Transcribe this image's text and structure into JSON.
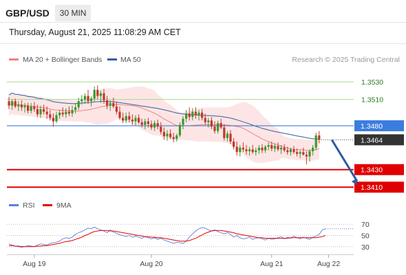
{
  "header": {
    "symbol": "GBP/USD",
    "timeframe": "30 MIN",
    "timestamp": "Thursday, August 21, 2025 11:08:29 AM CET"
  },
  "legend": {
    "items": [
      {
        "label": "MA 20 + Bollinger Bands",
        "color": "#f08080"
      },
      {
        "label": "MA 50",
        "color": "#2f5f9e"
      }
    ],
    "credit": "Research © 2025 Trading Central"
  },
  "colors": {
    "up": "#3a9a2f",
    "down": "#c0392b",
    "ma20": "#f08080",
    "bollinger_fill": "#fde2e2",
    "ma50": "#2f5f9e",
    "resistance": "#a8d88a",
    "pivot": "#3b7ddd",
    "support": "#e00000",
    "arrow": "#2e5aa0",
    "rsi": "#5b7fd6",
    "rsi_ma": "#e00000"
  },
  "chart_data": {
    "type": "candlestick",
    "price_range": [
      1.34,
      1.3545
    ],
    "x_tick_labels": [
      "Aug 19",
      "Aug 20",
      "Aug 21",
      "Aug 22"
    ],
    "x_tick_candle_index": [
      8,
      45,
      83,
      101
    ],
    "levels": [
      {
        "label": "1.3530",
        "value": 1.353,
        "kind": "resistance"
      },
      {
        "label": "1.3510",
        "value": 1.351,
        "kind": "resistance"
      },
      {
        "label": "1.3480",
        "value": 1.348,
        "kind": "pivot"
      },
      {
        "label": "1.3430",
        "value": 1.343,
        "kind": "support"
      },
      {
        "label": "1.3410",
        "value": 1.341,
        "kind": "support"
      }
    ],
    "current_price": {
      "label": "1.3464",
      "value": 1.3464
    },
    "forecast_arrow": {
      "from_index": 102,
      "from_value": 1.3464,
      "to_index": 110,
      "to_value": 1.3412
    },
    "candles": [
      [
        1.3508,
        1.3513,
        1.3499,
        1.3503
      ],
      [
        1.3503,
        1.351,
        1.3498,
        1.3508
      ],
      [
        1.3508,
        1.3511,
        1.35,
        1.3502
      ],
      [
        1.3502,
        1.3508,
        1.3497,
        1.3504
      ],
      [
        1.3504,
        1.3509,
        1.3497,
        1.3501
      ],
      [
        1.3501,
        1.3506,
        1.3495,
        1.3503
      ],
      [
        1.3503,
        1.3506,
        1.3494,
        1.3497
      ],
      [
        1.3497,
        1.3506,
        1.3494,
        1.3502
      ],
      [
        1.3502,
        1.3507,
        1.3496,
        1.3499
      ],
      [
        1.3499,
        1.3504,
        1.349,
        1.3493
      ],
      [
        1.3493,
        1.3503,
        1.3489,
        1.3499
      ],
      [
        1.3499,
        1.3504,
        1.3493,
        1.3496
      ],
      [
        1.3496,
        1.3502,
        1.3488,
        1.3493
      ],
      [
        1.3493,
        1.3498,
        1.3486,
        1.3489
      ],
      [
        1.3489,
        1.3494,
        1.3479,
        1.3485
      ],
      [
        1.3485,
        1.3496,
        1.3483,
        1.3492
      ],
      [
        1.3492,
        1.3498,
        1.3488,
        1.3495
      ],
      [
        1.3495,
        1.3501,
        1.349,
        1.3493
      ],
      [
        1.3493,
        1.35,
        1.3489,
        1.3496
      ],
      [
        1.3496,
        1.3502,
        1.3491,
        1.3494
      ],
      [
        1.3494,
        1.3503,
        1.349,
        1.3498
      ],
      [
        1.3498,
        1.3506,
        1.3494,
        1.3501
      ],
      [
        1.3501,
        1.3512,
        1.3498,
        1.3508
      ],
      [
        1.3508,
        1.3515,
        1.3504,
        1.351
      ],
      [
        1.351,
        1.3517,
        1.3505,
        1.3514
      ],
      [
        1.3514,
        1.3521,
        1.3505,
        1.3508
      ],
      [
        1.3508,
        1.3513,
        1.3502,
        1.3511
      ],
      [
        1.3511,
        1.3525,
        1.3508,
        1.3521
      ],
      [
        1.3521,
        1.3526,
        1.351,
        1.3514
      ],
      [
        1.3514,
        1.352,
        1.3506,
        1.3517
      ],
      [
        1.3517,
        1.3522,
        1.3505,
        1.3509
      ],
      [
        1.3509,
        1.3514,
        1.3499,
        1.3503
      ],
      [
        1.3503,
        1.3509,
        1.3497,
        1.3506
      ],
      [
        1.3506,
        1.3512,
        1.35,
        1.3502
      ],
      [
        1.3502,
        1.3507,
        1.3493,
        1.3496
      ],
      [
        1.3496,
        1.3502,
        1.3487,
        1.3489
      ],
      [
        1.3489,
        1.3495,
        1.3483,
        1.3486
      ],
      [
        1.3486,
        1.3495,
        1.3483,
        1.3491
      ],
      [
        1.3491,
        1.3496,
        1.3484,
        1.3487
      ],
      [
        1.3487,
        1.3493,
        1.3481,
        1.3485
      ],
      [
        1.3485,
        1.3492,
        1.348,
        1.3489
      ],
      [
        1.3489,
        1.3493,
        1.3482,
        1.3484
      ],
      [
        1.3484,
        1.3488,
        1.3478,
        1.3481
      ],
      [
        1.3481,
        1.3488,
        1.3476,
        1.3485
      ],
      [
        1.3485,
        1.3489,
        1.3478,
        1.3482
      ],
      [
        1.3482,
        1.3486,
        1.3475,
        1.3478
      ],
      [
        1.3478,
        1.3486,
        1.3474,
        1.3483
      ],
      [
        1.3483,
        1.3487,
        1.3476,
        1.3479
      ],
      [
        1.3479,
        1.3484,
        1.347,
        1.3473
      ],
      [
        1.3473,
        1.3478,
        1.3464,
        1.3468
      ],
      [
        1.3468,
        1.3475,
        1.3463,
        1.3471
      ],
      [
        1.3471,
        1.3476,
        1.3465,
        1.3467
      ],
      [
        1.3467,
        1.3472,
        1.3461,
        1.3465
      ],
      [
        1.3465,
        1.3471,
        1.3462,
        1.3469
      ],
      [
        1.3469,
        1.3484,
        1.3467,
        1.3481
      ],
      [
        1.3481,
        1.3491,
        1.3476,
        1.3488
      ],
      [
        1.3488,
        1.3498,
        1.3484,
        1.3494
      ],
      [
        1.3494,
        1.3501,
        1.3486,
        1.349
      ],
      [
        1.349,
        1.35,
        1.3486,
        1.3496
      ],
      [
        1.3496,
        1.3501,
        1.3488,
        1.3492
      ],
      [
        1.3492,
        1.3498,
        1.3486,
        1.3495
      ],
      [
        1.3495,
        1.3499,
        1.3486,
        1.3489
      ],
      [
        1.3489,
        1.3494,
        1.3481,
        1.3484
      ],
      [
        1.3484,
        1.3489,
        1.3478,
        1.3486
      ],
      [
        1.3486,
        1.349,
        1.3476,
        1.3479
      ],
      [
        1.3479,
        1.3485,
        1.3471,
        1.3474
      ],
      [
        1.3474,
        1.3486,
        1.3471,
        1.3483
      ],
      [
        1.3483,
        1.3488,
        1.3476,
        1.3478
      ],
      [
        1.3478,
        1.3482,
        1.3463,
        1.3466
      ],
      [
        1.3466,
        1.3474,
        1.3462,
        1.3471
      ],
      [
        1.3471,
        1.3475,
        1.3459,
        1.3462
      ],
      [
        1.3462,
        1.3466,
        1.3453,
        1.3456
      ],
      [
        1.3456,
        1.3462,
        1.3446,
        1.345
      ],
      [
        1.345,
        1.3458,
        1.3445,
        1.3455
      ],
      [
        1.3455,
        1.3461,
        1.345,
        1.3453
      ],
      [
        1.3453,
        1.3458,
        1.3447,
        1.3451
      ],
      [
        1.3451,
        1.3456,
        1.3446,
        1.3453
      ],
      [
        1.3453,
        1.3458,
        1.3448,
        1.345
      ],
      [
        1.345,
        1.3455,
        1.3446,
        1.3452
      ],
      [
        1.3452,
        1.3458,
        1.3448,
        1.3455
      ],
      [
        1.3455,
        1.3459,
        1.3449,
        1.3452
      ],
      [
        1.3452,
        1.3458,
        1.3449,
        1.3456
      ],
      [
        1.3456,
        1.3461,
        1.3452,
        1.3458
      ],
      [
        1.3458,
        1.3462,
        1.3451,
        1.3454
      ],
      [
        1.3454,
        1.346,
        1.345,
        1.3457
      ],
      [
        1.3457,
        1.3461,
        1.3451,
        1.3453
      ],
      [
        1.3453,
        1.3458,
        1.3448,
        1.3455
      ],
      [
        1.3455,
        1.3459,
        1.345,
        1.3452
      ],
      [
        1.3452,
        1.3456,
        1.3447,
        1.345
      ],
      [
        1.345,
        1.3455,
        1.3446,
        1.3453
      ],
      [
        1.3453,
        1.3457,
        1.3448,
        1.345
      ],
      [
        1.345,
        1.3454,
        1.3445,
        1.3448
      ],
      [
        1.3448,
        1.3452,
        1.3443,
        1.345
      ],
      [
        1.345,
        1.3455,
        1.3446,
        1.3447
      ],
      [
        1.3447,
        1.3451,
        1.3436,
        1.3445
      ],
      [
        1.3445,
        1.3453,
        1.3439,
        1.3451
      ],
      [
        1.3451,
        1.3458,
        1.3446,
        1.3455
      ],
      [
        1.3455,
        1.3472,
        1.3452,
        1.3469
      ],
      [
        1.3469,
        1.3474,
        1.346,
        1.3464
      ]
    ],
    "rsi_panel": {
      "legend": [
        "RSI",
        "9MA"
      ],
      "levels": [
        70,
        50,
        30
      ],
      "rsi": [
        35,
        33,
        31,
        30,
        29,
        30,
        32,
        31,
        30,
        33,
        35,
        34,
        33,
        36,
        37,
        38,
        40,
        44,
        46,
        45,
        47,
        52,
        55,
        57,
        60,
        63,
        62,
        65,
        62,
        60,
        58,
        55,
        60,
        56,
        54,
        51,
        50,
        48,
        50,
        47,
        49,
        47,
        45,
        48,
        46,
        44,
        46,
        43,
        45,
        42,
        40,
        38,
        36,
        38,
        37,
        36,
        40,
        47,
        53,
        58,
        62,
        64,
        63,
        60,
        58,
        60,
        57,
        55,
        53,
        55,
        52,
        47,
        50,
        46,
        44,
        45,
        47,
        43,
        45,
        46,
        44,
        42,
        45,
        43,
        44,
        46,
        48,
        44,
        47,
        45,
        49,
        46,
        44,
        47,
        45,
        43,
        47,
        49,
        52,
        60,
        62
      ],
      "rsi_ma": [
        32,
        32,
        31,
        31,
        30,
        30,
        30,
        30,
        30,
        31,
        31,
        32,
        32,
        33,
        34,
        35,
        36,
        38,
        39,
        40,
        41,
        43,
        45,
        47,
        50,
        52,
        55,
        57,
        58,
        59,
        59,
        59,
        58,
        58,
        57,
        56,
        55,
        54,
        53,
        52,
        51,
        50,
        49,
        48,
        48,
        47,
        47,
        46,
        46,
        45,
        44,
        43,
        42,
        41,
        40,
        40,
        40,
        41,
        43,
        45,
        48,
        51,
        54,
        56,
        58,
        59,
        59,
        59,
        58,
        57,
        56,
        55,
        53,
        52,
        51,
        50,
        49,
        48,
        47,
        46,
        46,
        45,
        45,
        45,
        45,
        45,
        45,
        45,
        45,
        46,
        46,
        46,
        46,
        46,
        46,
        46,
        46,
        46,
        47,
        48,
        50
      ]
    }
  }
}
